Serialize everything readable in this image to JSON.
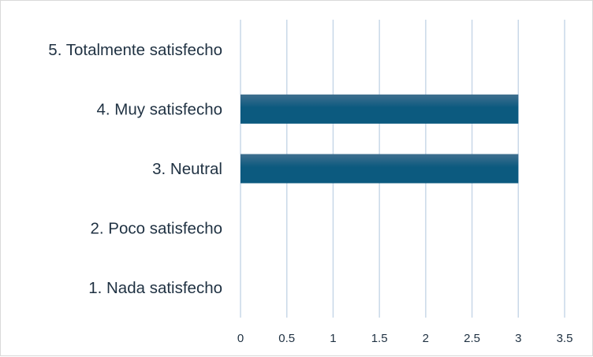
{
  "chart_data": {
    "type": "bar",
    "orientation": "horizontal",
    "categories": [
      "1. Nada satisfecho",
      "2. Poco satisfecho",
      "3. Neutral",
      "4. Muy satisfecho",
      "5. Totalmente satisfecho"
    ],
    "values": [
      0,
      0,
      3,
      3,
      0
    ],
    "xlim": [
      0,
      3.5
    ],
    "xticks": [
      "0",
      "0.5",
      "1",
      "1.5",
      "2",
      "2.5",
      "3",
      "3.5"
    ],
    "grid": "vertical",
    "legend": "none",
    "colors": {
      "bar_top": "#3f6f8f",
      "bar_bottom": "#0c5a7f",
      "gridline": "#c8d8e8",
      "text": "#1f3142"
    }
  }
}
